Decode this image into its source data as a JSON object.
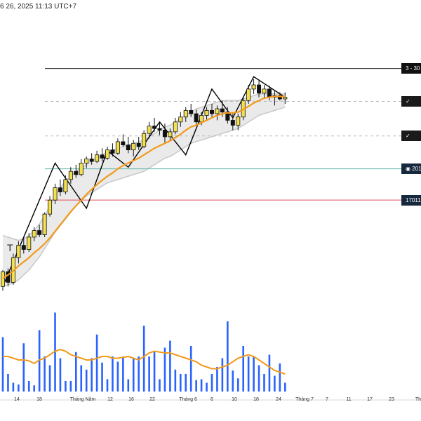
{
  "header": {
    "timestamp": "6 26, 2025 11:13 UTC+7"
  },
  "price_tags": [
    {
      "label": "3 - 30",
      "bg": "#111111"
    },
    {
      "label": "✓",
      "bg": "#1a1a1a"
    },
    {
      "label": "✓",
      "bg": "#1a1a1a"
    },
    {
      "label": "◉ 201",
      "bg": "#16283e"
    },
    {
      "label": "17011",
      "bg": "#16283e"
    }
  ],
  "pattern_labels": {
    "t_marker": "T"
  },
  "colors": {
    "bull_body": "#f4e04d",
    "bear_body": "#111111",
    "ema": "#f29a1b",
    "volume": "#2962ff",
    "band_fill": "#e6e6e6",
    "band_edge": "#c8c8c8",
    "zigzag": "#000000",
    "support_line": "#5fb3a6",
    "stop_line": "#e05060",
    "resistance_line": "#222222",
    "dashed_line": "#b8b8b8"
  },
  "chart_data": {
    "type": "candlestick",
    "x_tick_labels": [
      "14",
      "18",
      "Tháng Năm",
      "12",
      "16",
      "22",
      "Tháng 6",
      "6",
      "10",
      "18",
      "24",
      "Tháng 7",
      "7",
      "11",
      "17",
      "23",
      "Th"
    ],
    "candles": [
      [
        100,
        120,
        95,
        118
      ],
      [
        118,
        122,
        100,
        105
      ],
      [
        105,
        140,
        102,
        135
      ],
      [
        135,
        155,
        128,
        150
      ],
      [
        150,
        160,
        140,
        145
      ],
      [
        145,
        165,
        142,
        160
      ],
      [
        160,
        172,
        155,
        168
      ],
      [
        168,
        175,
        160,
        163
      ],
      [
        163,
        190,
        160,
        188
      ],
      [
        188,
        210,
        185,
        205
      ],
      [
        205,
        225,
        200,
        220
      ],
      [
        220,
        230,
        210,
        215
      ],
      [
        215,
        235,
        212,
        230
      ],
      [
        230,
        245,
        225,
        240
      ],
      [
        240,
        248,
        232,
        236
      ],
      [
        236,
        255,
        234,
        250
      ],
      [
        250,
        258,
        244,
        255
      ],
      [
        255,
        262,
        248,
        252
      ],
      [
        252,
        265,
        250,
        260
      ],
      [
        260,
        268,
        252,
        256
      ],
      [
        256,
        270,
        254,
        266
      ],
      [
        266,
        274,
        258,
        262
      ],
      [
        262,
        280,
        260,
        276
      ],
      [
        276,
        285,
        270,
        272
      ],
      [
        272,
        282,
        262,
        266
      ],
      [
        266,
        278,
        258,
        274
      ],
      [
        274,
        282,
        266,
        270
      ],
      [
        270,
        290,
        268,
        286
      ],
      [
        286,
        300,
        280,
        295
      ],
      [
        295,
        305,
        288,
        292
      ],
      [
        292,
        300,
        284,
        290
      ],
      [
        290,
        298,
        275,
        282
      ],
      [
        282,
        292,
        278,
        288
      ],
      [
        288,
        305,
        285,
        300
      ],
      [
        300,
        312,
        294,
        306
      ],
      [
        306,
        318,
        300,
        314
      ],
      [
        314,
        322,
        306,
        310
      ],
      [
        310,
        315,
        296,
        300
      ],
      [
        300,
        312,
        296,
        308
      ],
      [
        308,
        318,
        302,
        314
      ],
      [
        314,
        322,
        306,
        310
      ],
      [
        310,
        320,
        302,
        316
      ],
      [
        316,
        326,
        306,
        312
      ],
      [
        312,
        318,
        298,
        302
      ],
      [
        302,
        310,
        290,
        296
      ],
      [
        296,
        310,
        290,
        306
      ],
      [
        306,
        330,
        302,
        326
      ],
      [
        326,
        345,
        322,
        340
      ],
      [
        340,
        352,
        334,
        345
      ],
      [
        345,
        350,
        330,
        335
      ],
      [
        335,
        345,
        328,
        340
      ],
      [
        340,
        344,
        326,
        330
      ],
      [
        330,
        338,
        320,
        332
      ],
      [
        332,
        336,
        326,
        328
      ],
      [
        328,
        336,
        322,
        330
      ]
    ],
    "ema": [
      110,
      114,
      119,
      125,
      130,
      135,
      141,
      146,
      152,
      159,
      167,
      175,
      183,
      191,
      198,
      205,
      212,
      218,
      224,
      229,
      234,
      238,
      243,
      247,
      250,
      253,
      256,
      260,
      264,
      268,
      271,
      274,
      277,
      281,
      285,
      290,
      294,
      296,
      299,
      302,
      305,
      308,
      310,
      311,
      311,
      312,
      315,
      319,
      323,
      326,
      329,
      330,
      331,
      331,
      331
    ],
    "band_upper": [
      162,
      160,
      158,
      156,
      158,
      162,
      168,
      176,
      186,
      198,
      210,
      220,
      228,
      234,
      240,
      244,
      248,
      252,
      256,
      260,
      264,
      266,
      268,
      270,
      272,
      274,
      276,
      278,
      282,
      286,
      290,
      294,
      296,
      300,
      304,
      308,
      312,
      316,
      318,
      320,
      322,
      324,
      326,
      326,
      326,
      326,
      328,
      330,
      332,
      334,
      334,
      334,
      334,
      334,
      334
    ],
    "band_lower": [
      100,
      102,
      104,
      108,
      114,
      120,
      128,
      136,
      146,
      156,
      166,
      174,
      182,
      190,
      198,
      204,
      210,
      214,
      218,
      222,
      226,
      228,
      230,
      232,
      234,
      236,
      238,
      240,
      244,
      248,
      252,
      256,
      258,
      262,
      266,
      270,
      274,
      276,
      278,
      280,
      282,
      284,
      286,
      288,
      290,
      292,
      296,
      300,
      304,
      308,
      310,
      312,
      314,
      316,
      318
    ],
    "zigzag": [
      [
        0,
        100
      ],
      [
        10,
        250
      ],
      [
        16,
        195
      ],
      [
        20,
        265
      ],
      [
        24,
        245
      ],
      [
        30,
        300
      ],
      [
        35,
        260
      ],
      [
        40,
        340
      ],
      [
        44,
        305
      ],
      [
        48,
        355
      ],
      [
        54,
        330
      ]
    ],
    "volume": [
      62,
      20,
      10,
      8,
      55,
      12,
      7,
      70,
      40,
      30,
      90,
      38,
      12,
      12,
      45,
      30,
      25,
      38,
      65,
      33,
      14,
      40,
      34,
      40,
      14,
      38,
      40,
      75,
      40,
      45,
      14,
      50,
      58,
      25,
      20,
      20,
      52,
      13,
      14,
      10,
      20,
      28,
      38,
      80,
      24,
      15,
      52,
      40,
      40,
      30,
      20,
      42,
      18,
      32,
      10
    ],
    "volume_ma": [
      40,
      40,
      38,
      36,
      36,
      35,
      32,
      36,
      38,
      42,
      46,
      48,
      46,
      42,
      40,
      38,
      36,
      36,
      38,
      40,
      40,
      38,
      38,
      39,
      40,
      38,
      36,
      40,
      44,
      46,
      45,
      44,
      44,
      42,
      40,
      38,
      36,
      34,
      30,
      28,
      26,
      26,
      28,
      30,
      34,
      38,
      40,
      42,
      40,
      36,
      32,
      28,
      24,
      22,
      20
    ],
    "levels": {
      "resistance": 365,
      "dashed_upper": 325,
      "dashed_lower": 283,
      "support": 243,
      "stop": 205
    },
    "y_range": [
      90,
      380
    ]
  }
}
